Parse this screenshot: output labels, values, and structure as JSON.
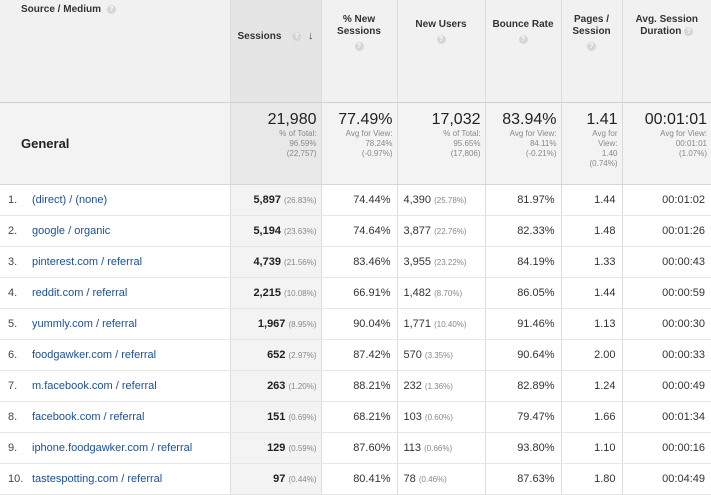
{
  "headers": {
    "source_medium": "Source / Medium",
    "sessions": "Sessions",
    "new_sessions": [
      "% New",
      "Sessions"
    ],
    "new_users": "New Users",
    "bounce_rate": "Bounce Rate",
    "pages_session": [
      "Pages /",
      "Session"
    ],
    "avg_duration": [
      "Avg. Session",
      "Duration"
    ]
  },
  "help_icon": "?",
  "sort_icon": "↓",
  "general": {
    "label": "General",
    "sessions": {
      "value": "21,980",
      "sub": [
        "% of Total:",
        "96.59%",
        "(22,757)"
      ]
    },
    "new_sessions": {
      "value": "77.49%",
      "sub": [
        "Avg for View:",
        "78.24%",
        "(-0.97%)"
      ]
    },
    "new_users": {
      "value": "17,032",
      "sub": [
        "% of Total:",
        "95.65%",
        "(17,806)"
      ]
    },
    "bounce_rate": {
      "value": "83.94%",
      "sub": [
        "Avg for View:",
        "84.11%",
        "(-0.21%)"
      ]
    },
    "pages_session": {
      "value": "1.41",
      "sub": [
        "Avg for",
        "View:",
        "1.40",
        "(0.74%)"
      ]
    },
    "avg_duration": {
      "value": "00:01:01",
      "sub": [
        "Avg for View:",
        "00:01:01",
        "(1.07%)"
      ]
    }
  },
  "rows": [
    {
      "idx": "1.",
      "source": "(direct) / (none)",
      "sessions": "5,897",
      "sessions_pct": "(26.83%)",
      "new_sessions": "74.44%",
      "new_users": "4,390",
      "new_users_pct": "(25.78%)",
      "bounce": "81.97%",
      "pages": "1.44",
      "duration": "00:01:02"
    },
    {
      "idx": "2.",
      "source": "google / organic",
      "sessions": "5,194",
      "sessions_pct": "(23.63%)",
      "new_sessions": "74.64%",
      "new_users": "3,877",
      "new_users_pct": "(22.76%)",
      "bounce": "82.33%",
      "pages": "1.48",
      "duration": "00:01:26"
    },
    {
      "idx": "3.",
      "source": "pinterest.com / referral",
      "sessions": "4,739",
      "sessions_pct": "(21.56%)",
      "new_sessions": "83.46%",
      "new_users": "3,955",
      "new_users_pct": "(23.22%)",
      "bounce": "84.19%",
      "pages": "1.33",
      "duration": "00:00:43"
    },
    {
      "idx": "4.",
      "source": "reddit.com / referral",
      "sessions": "2,215",
      "sessions_pct": "(10.08%)",
      "new_sessions": "66.91%",
      "new_users": "1,482",
      "new_users_pct": "(8.70%)",
      "bounce": "86.05%",
      "pages": "1.44",
      "duration": "00:00:59"
    },
    {
      "idx": "5.",
      "source": "yummly.com / referral",
      "sessions": "1,967",
      "sessions_pct": "(8.95%)",
      "new_sessions": "90.04%",
      "new_users": "1,771",
      "new_users_pct": "(10.40%)",
      "bounce": "91.46%",
      "pages": "1.13",
      "duration": "00:00:30"
    },
    {
      "idx": "6.",
      "source": "foodgawker.com / referral",
      "sessions": "652",
      "sessions_pct": "(2.97%)",
      "new_sessions": "87.42%",
      "new_users": "570",
      "new_users_pct": "(3.35%)",
      "bounce": "90.64%",
      "pages": "2.00",
      "duration": "00:00:33"
    },
    {
      "idx": "7.",
      "source": "m.facebook.com / referral",
      "sessions": "263",
      "sessions_pct": "(1.20%)",
      "new_sessions": "88.21%",
      "new_users": "232",
      "new_users_pct": "(1.36%)",
      "bounce": "82.89%",
      "pages": "1.24",
      "duration": "00:00:49"
    },
    {
      "idx": "8.",
      "source": "facebook.com / referral",
      "sessions": "151",
      "sessions_pct": "(0.69%)",
      "new_sessions": "68.21%",
      "new_users": "103",
      "new_users_pct": "(0.60%)",
      "bounce": "79.47%",
      "pages": "1.66",
      "duration": "00:01:34"
    },
    {
      "idx": "9.",
      "source": "iphone.foodgawker.com / referral",
      "sessions": "129",
      "sessions_pct": "(0.59%)",
      "new_sessions": "87.60%",
      "new_users": "113",
      "new_users_pct": "(0.66%)",
      "bounce": "93.80%",
      "pages": "1.10",
      "duration": "00:00:16"
    },
    {
      "idx": "10.",
      "source": "tastespotting.com / referral",
      "sessions": "97",
      "sessions_pct": "(0.44%)",
      "new_sessions": "80.41%",
      "new_users": "78",
      "new_users_pct": "(0.46%)",
      "bounce": "87.63%",
      "pages": "1.80",
      "duration": "00:04:49"
    }
  ]
}
